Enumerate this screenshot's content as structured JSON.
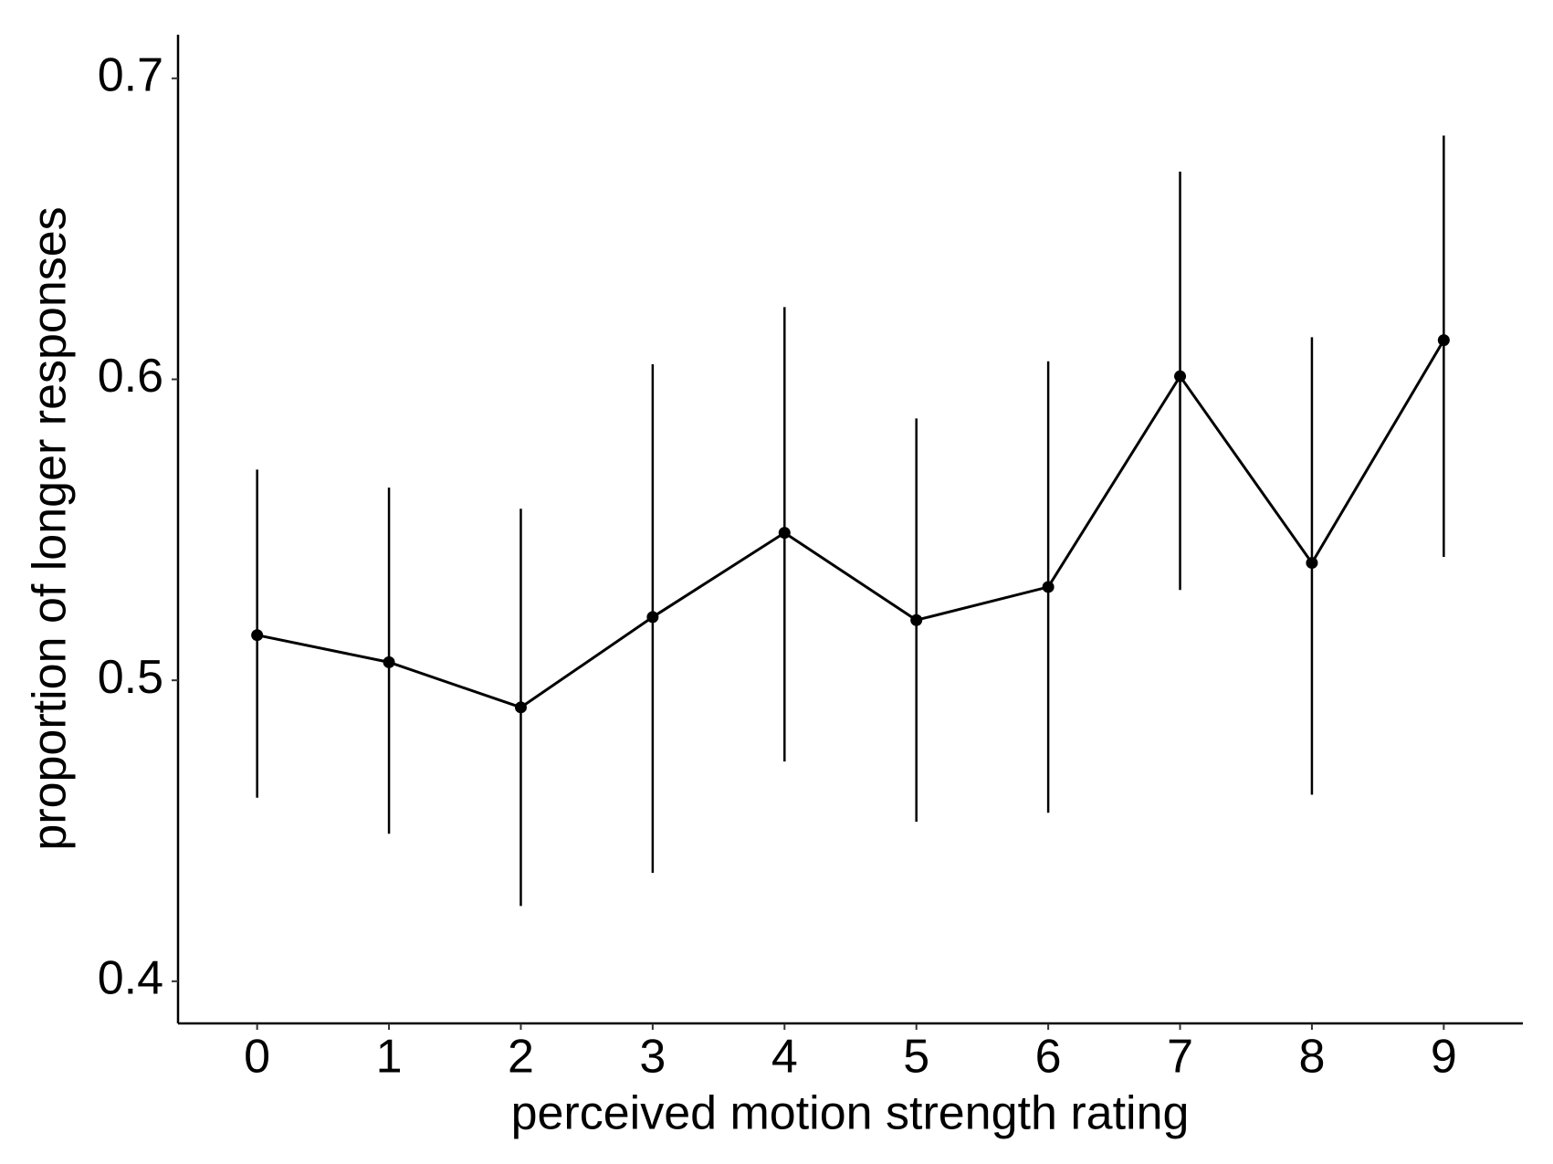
{
  "chart_data": {
    "type": "line",
    "x_label": "perceived motion strength rating",
    "y_label": "proportion of longer responses",
    "x": [
      0,
      1,
      2,
      3,
      4,
      5,
      6,
      7,
      8,
      9
    ],
    "series": [
      {
        "color": "#000000",
        "values": [
          0.515,
          0.506,
          0.491,
          0.521,
          0.549,
          0.52,
          0.531,
          0.601,
          0.539,
          0.613
        ],
        "lower": [
          0.461,
          0.449,
          0.425,
          0.436,
          0.473,
          0.453,
          0.456,
          0.53,
          0.462,
          0.541
        ],
        "upper": [
          0.57,
          0.564,
          0.557,
          0.605,
          0.624,
          0.587,
          0.606,
          0.669,
          0.614,
          0.681
        ]
      }
    ],
    "xlim": [
      -0.6,
      9.6
    ],
    "ylim": [
      0.386,
      0.7145
    ],
    "xticks": [
      0,
      1,
      2,
      3,
      4,
      5,
      6,
      7,
      8,
      9
    ],
    "yticks": [
      0.4,
      0.5,
      0.6,
      0.7
    ],
    "grid": false
  }
}
